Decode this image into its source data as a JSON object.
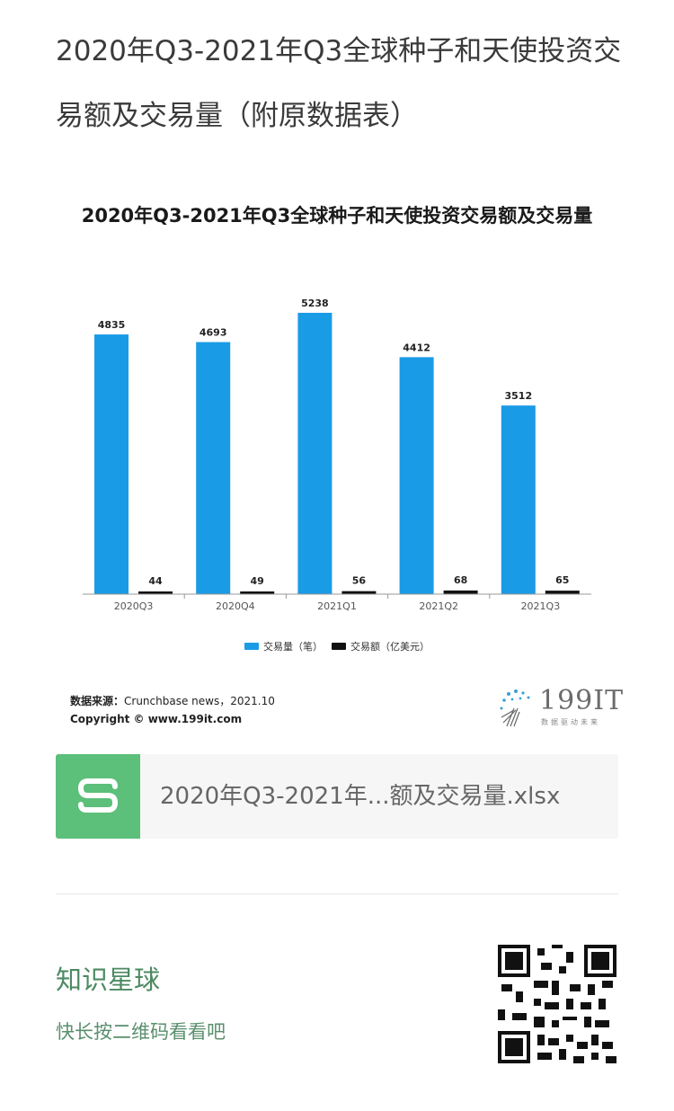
{
  "article": {
    "title": "2020年Q3-2021年Q3全球种子和天使投资交易额及交易量（附原数据表）"
  },
  "chart_data": {
    "type": "bar",
    "title": "2020年Q3-2021年Q3全球种子和天使投资交易额及交易量",
    "categories": [
      "2020Q3",
      "2020Q4",
      "2021Q1",
      "2021Q2",
      "2021Q3"
    ],
    "series": [
      {
        "name": "交易量（笔）",
        "values": [
          4835,
          4693,
          5238,
          4412,
          3512
        ],
        "color": "#1a9be6"
      },
      {
        "name": "交易额（亿美元）",
        "values": [
          44,
          49,
          56,
          68,
          65
        ],
        "color": "#111111"
      }
    ],
    "ylim": [
      0,
      5238
    ],
    "grid": false,
    "legend_position": "bottom-center",
    "xlabel": "",
    "ylabel": ""
  },
  "footer": {
    "source_label": "数据来源：",
    "source_value": "Crunchbase news，2021.10",
    "copyright": "Copyright © www.199it.com",
    "logo_text": "199IT",
    "logo_sub": "数据驱动未来"
  },
  "attachment": {
    "file_name": "2020年Q3-2021年...额及交易量.xlsx",
    "icon": "spreadsheet-s-icon",
    "icon_color": "#5cbf7a"
  },
  "promo": {
    "title": "知识星球",
    "subtitle": "快长按二维码看看吧"
  }
}
